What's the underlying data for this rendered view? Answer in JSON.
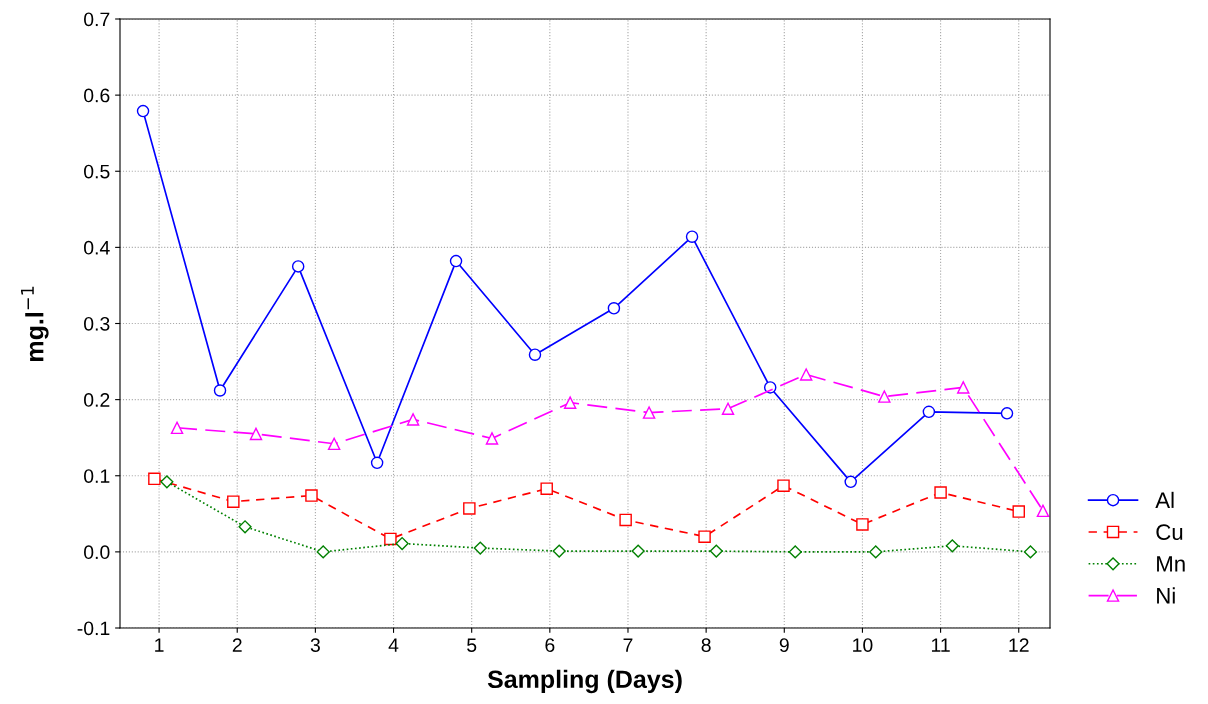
{
  "chart_data": {
    "type": "line",
    "xlabel": "Sampling (Days)",
    "ylabel": "mg.l$^{−1}$",
    "xlim": [
      0.5,
      12.4
    ],
    "xticks": [
      1,
      2,
      3,
      4,
      5,
      6,
      7,
      8,
      9,
      10,
      11,
      12
    ],
    "ylim": [
      -0.1,
      0.7
    ],
    "yticks": [
      {
        "value": -0.1,
        "label": "-0.1"
      },
      {
        "value": 0.0,
        "label": "0.0"
      },
      0.1,
      0.2,
      0.3,
      0.4,
      0.5,
      0.6,
      0.7
    ],
    "grid": true,
    "legend": "bottom right",
    "series": [
      {
        "name": "Al",
        "color": "#0000ff",
        "marker": "circle",
        "line_style": "solid",
        "x": [
          0.795,
          1.78,
          2.78,
          3.79,
          4.8,
          5.81,
          6.82,
          7.82,
          8.82,
          9.85,
          10.85,
          11.85
        ],
        "values": [
          0.579,
          0.212,
          0.375,
          0.117,
          0.382,
          0.259,
          0.32,
          0.414,
          0.216,
          0.092,
          0.184,
          0.182
        ]
      },
      {
        "name": "Cu",
        "color": "#ff0000",
        "marker": "square",
        "line_style": "dashed",
        "x": [
          0.94,
          1.95,
          2.95,
          3.96,
          4.97,
          5.96,
          6.97,
          7.98,
          8.99,
          10.0,
          11.0,
          12.0
        ],
        "values": [
          0.096,
          0.066,
          0.074,
          0.017,
          0.057,
          0.083,
          0.042,
          0.02,
          0.087,
          0.036,
          0.078,
          0.053
        ]
      },
      {
        "name": "Mn",
        "color": "#008000",
        "marker": "diamond",
        "line_style": "dotted",
        "x": [
          1.1,
          2.1,
          3.1,
          4.11,
          5.11,
          6.12,
          7.13,
          8.13,
          9.14,
          10.17,
          11.15,
          12.15
        ],
        "values": [
          0.092,
          0.033,
          0.0,
          0.011,
          0.005,
          0.001,
          0.001,
          0.001,
          0.0,
          0.0,
          0.008,
          0.0
        ]
      },
      {
        "name": "Ni",
        "color": "#ff00ff",
        "marker": "triangle",
        "line_style": "longdash",
        "x": [
          1.23,
          2.24,
          3.24,
          4.25,
          5.26,
          6.26,
          7.27,
          8.28,
          9.28,
          10.28,
          11.29,
          12.31
        ],
        "values": [
          0.163,
          0.155,
          0.142,
          0.174,
          0.149,
          0.196,
          0.183,
          0.188,
          0.233,
          0.204,
          0.216,
          0.054
        ]
      }
    ]
  }
}
